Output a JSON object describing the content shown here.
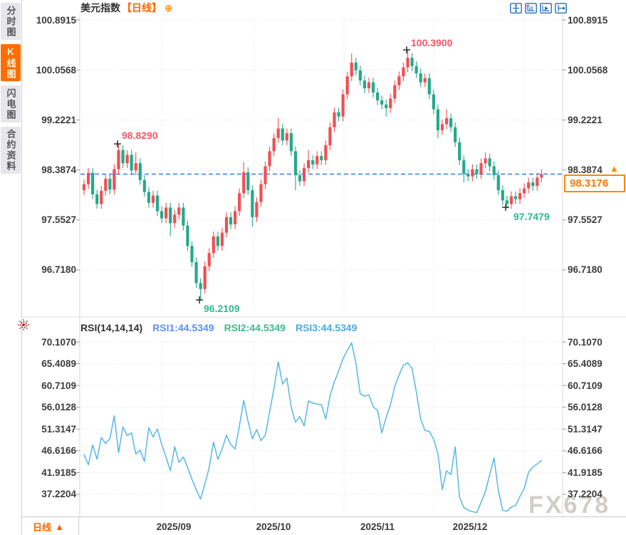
{
  "sidebar": {
    "tabs": [
      {
        "label": "分时图",
        "selected": false
      },
      {
        "label": "K线图",
        "selected": true
      },
      {
        "label": "闪电图",
        "selected": false
      },
      {
        "label": "合约资料",
        "selected": false
      }
    ]
  },
  "titlebar": {
    "symbol": "美元指数",
    "period_tag": "【日线】",
    "add_icon": "⊕",
    "toolbar_icons": [
      "crosshair-move-icon",
      "axis-scale-left-icon",
      "axis-play-icon",
      "pan-right-icon"
    ]
  },
  "candle_panel": {
    "y_axis_labels": [
      "100.8915",
      "100.0568",
      "99.2221",
      "98.3874",
      "97.5527",
      "96.7180"
    ],
    "annotations": [
      {
        "id": "high1",
        "text": "98.8290",
        "color": "#f4566a"
      },
      {
        "id": "high2",
        "text": "100.3900",
        "color": "#f4566a"
      },
      {
        "id": "low1",
        "text": "96.2109",
        "color": "#2eb98d"
      },
      {
        "id": "low2",
        "text": "97.7479",
        "color": "#2eb98d"
      }
    ],
    "current_price": {
      "value": "98.3176",
      "marker": "▲"
    }
  },
  "rsi_panel": {
    "header": {
      "title": "RSI(14,14,14)",
      "rsi1_label": "RSI1:44.5349",
      "rsi2_label": "RSI2:44.5349",
      "rsi3_label": "RSI3:44.5349"
    },
    "y_axis_labels": [
      "70.1070",
      "65.4089",
      "60.7109",
      "56.0128",
      "51.3147",
      "46.6166",
      "41.9185",
      "37.2204"
    ]
  },
  "bottom_bar": {
    "period": "日线",
    "arrow": "▲"
  },
  "watermark": "FX678",
  "colors": {
    "up_candle": "#ef4f54",
    "down_candle": "#25a98a",
    "price_line": "#4285f4",
    "rsi_line": "#57b7e6",
    "accent_orange": "#ff6600",
    "grid": "#e2e2e8",
    "axis_text": "#3c3c3c"
  },
  "chart_data": {
    "type": "candlestick",
    "symbol": "美元指数",
    "period": "日线",
    "x_labels": [
      "2025/09",
      "2025/10",
      "2025/11",
      "2025/12"
    ],
    "price_y_ticks": [
      100.8915,
      100.0568,
      99.2221,
      98.3874,
      97.5527,
      96.718
    ],
    "current_price": 98.3176,
    "marked_points": {
      "local_high": 98.829,
      "global_high": 100.39,
      "global_low": 96.2109,
      "recent_low": 97.7479
    },
    "candles_ohlc": [
      [
        98.05,
        98.23,
        97.97,
        98.15
      ],
      [
        98.15,
        98.42,
        98.07,
        98.34
      ],
      [
        98.34,
        98.42,
        97.9,
        97.98
      ],
      [
        97.98,
        98.06,
        97.74,
        97.82
      ],
      [
        97.82,
        98.12,
        97.74,
        98.04
      ],
      [
        98.04,
        98.32,
        97.96,
        98.24
      ],
      [
        98.24,
        98.32,
        97.98,
        98.06
      ],
      [
        98.06,
        98.48,
        97.98,
        98.4
      ],
      [
        98.4,
        98.83,
        98.32,
        98.72
      ],
      [
        98.72,
        98.8,
        98.42,
        98.5
      ],
      [
        98.5,
        98.72,
        98.42,
        98.64
      ],
      [
        98.64,
        98.72,
        98.3,
        98.38
      ],
      [
        98.38,
        98.68,
        98.3,
        98.5
      ],
      [
        98.5,
        98.58,
        98.14,
        98.22
      ],
      [
        98.22,
        98.3,
        97.94,
        98.02
      ],
      [
        98.02,
        98.1,
        97.76,
        97.84
      ],
      [
        97.84,
        98.04,
        97.76,
        97.96
      ],
      [
        97.96,
        98.04,
        97.62,
        97.7
      ],
      [
        97.7,
        97.78,
        97.5,
        97.58
      ],
      [
        97.58,
        97.84,
        97.5,
        97.76
      ],
      [
        97.76,
        97.84,
        97.28,
        97.5
      ],
      [
        97.5,
        97.72,
        97.42,
        97.64
      ],
      [
        97.64,
        97.84,
        97.56,
        97.76
      ],
      [
        97.76,
        97.84,
        97.38,
        97.46
      ],
      [
        97.46,
        97.54,
        97.04,
        97.12
      ],
      [
        97.12,
        97.2,
        96.77,
        96.85
      ],
      [
        96.85,
        96.93,
        96.42,
        96.5
      ],
      [
        96.5,
        96.58,
        96.21,
        96.4
      ],
      [
        96.4,
        96.86,
        96.32,
        96.78
      ],
      [
        96.78,
        97.08,
        96.7,
        97.0
      ],
      [
        97.0,
        97.36,
        96.92,
        97.28
      ],
      [
        97.28,
        97.36,
        97.04,
        97.12
      ],
      [
        97.12,
        97.42,
        97.04,
        97.34
      ],
      [
        97.34,
        97.68,
        97.26,
        97.6
      ],
      [
        97.6,
        97.68,
        97.4,
        97.48
      ],
      [
        97.48,
        97.78,
        97.4,
        97.7
      ],
      [
        97.7,
        98.08,
        97.62,
        98.0
      ],
      [
        98.0,
        98.52,
        97.92,
        98.35
      ],
      [
        98.35,
        98.43,
        97.97,
        98.05
      ],
      [
        98.05,
        98.13,
        97.44,
        97.6
      ],
      [
        97.6,
        97.93,
        97.52,
        97.85
      ],
      [
        97.85,
        98.23,
        97.77,
        98.15
      ],
      [
        98.15,
        98.53,
        98.07,
        98.45
      ],
      [
        98.45,
        98.78,
        98.37,
        98.7
      ],
      [
        98.7,
        99.0,
        98.62,
        98.92
      ],
      [
        98.92,
        99.26,
        98.84,
        99.08
      ],
      [
        99.08,
        99.16,
        98.8,
        98.88
      ],
      [
        98.88,
        99.08,
        98.8,
        99.0
      ],
      [
        99.0,
        99.08,
        98.62,
        98.7
      ],
      [
        98.7,
        98.78,
        98.05,
        98.3
      ],
      [
        98.3,
        98.38,
        98.12,
        98.2
      ],
      [
        98.2,
        98.5,
        98.12,
        98.42
      ],
      [
        98.42,
        98.72,
        98.34,
        98.55
      ],
      [
        98.55,
        98.63,
        98.4,
        98.48
      ],
      [
        98.48,
        98.7,
        98.4,
        98.62
      ],
      [
        98.62,
        98.7,
        98.47,
        98.55
      ],
      [
        98.55,
        98.88,
        98.47,
        98.8
      ],
      [
        98.8,
        99.18,
        98.72,
        99.1
      ],
      [
        99.1,
        99.43,
        99.02,
        99.35
      ],
      [
        99.35,
        99.43,
        99.2,
        99.28
      ],
      [
        99.28,
        99.73,
        99.2,
        99.65
      ],
      [
        99.65,
        100.03,
        99.57,
        99.95
      ],
      [
        99.95,
        100.33,
        99.87,
        100.18
      ],
      [
        100.18,
        100.26,
        99.97,
        100.05
      ],
      [
        100.05,
        100.13,
        99.8,
        99.88
      ],
      [
        99.88,
        99.96,
        99.67,
        99.75
      ],
      [
        99.75,
        99.93,
        99.67,
        99.85
      ],
      [
        99.85,
        99.93,
        99.6,
        99.68
      ],
      [
        99.68,
        99.76,
        99.47,
        99.55
      ],
      [
        99.55,
        99.63,
        99.4,
        99.48
      ],
      [
        99.48,
        99.56,
        99.28,
        99.42
      ],
      [
        99.42,
        99.66,
        99.34,
        99.58
      ],
      [
        99.58,
        99.88,
        99.5,
        99.8
      ],
      [
        99.8,
        100.03,
        99.72,
        99.95
      ],
      [
        99.95,
        100.18,
        99.87,
        100.1
      ],
      [
        100.1,
        100.39,
        100.02,
        100.26
      ],
      [
        100.26,
        100.34,
        100.04,
        100.12
      ],
      [
        100.12,
        100.2,
        99.92,
        100.0
      ],
      [
        100.0,
        100.08,
        99.77,
        99.85
      ],
      [
        99.85,
        100.0,
        99.77,
        99.92
      ],
      [
        99.92,
        100.0,
        99.57,
        99.65
      ],
      [
        99.65,
        99.73,
        99.32,
        99.4
      ],
      [
        99.4,
        99.48,
        98.92,
        99.05
      ],
      [
        99.05,
        99.23,
        98.97,
        99.15
      ],
      [
        99.15,
        99.4,
        99.07,
        99.25
      ],
      [
        99.25,
        99.33,
        99.02,
        99.1
      ],
      [
        99.1,
        99.18,
        98.77,
        98.85
      ],
      [
        98.85,
        98.93,
        98.47,
        98.55
      ],
      [
        98.55,
        98.63,
        98.18,
        98.32
      ],
      [
        98.32,
        98.4,
        98.2,
        98.28
      ],
      [
        98.28,
        98.48,
        98.2,
        98.4
      ],
      [
        98.4,
        98.48,
        98.24,
        98.32
      ],
      [
        98.32,
        98.58,
        98.24,
        98.5
      ],
      [
        98.5,
        98.68,
        98.42,
        98.58
      ],
      [
        98.58,
        98.66,
        98.37,
        98.45
      ],
      [
        98.45,
        98.53,
        98.22,
        98.3
      ],
      [
        98.3,
        98.38,
        97.97,
        98.05
      ],
      [
        98.05,
        98.13,
        97.8,
        97.88
      ],
      [
        97.88,
        97.96,
        97.7479,
        97.82
      ],
      [
        97.82,
        98.03,
        97.74,
        97.95
      ],
      [
        97.95,
        98.03,
        97.82,
        97.9
      ],
      [
        97.9,
        98.08,
        97.82,
        98.0
      ],
      [
        98.0,
        98.16,
        97.92,
        98.08
      ],
      [
        98.08,
        98.26,
        98.0,
        98.18
      ],
      [
        98.18,
        98.26,
        98.04,
        98.12
      ],
      [
        98.12,
        98.34,
        98.04,
        98.26
      ],
      [
        98.26,
        98.4,
        98.18,
        98.3176
      ]
    ],
    "rsi": {
      "label": "RSI(14,14,14)",
      "rsi1": 44.5349,
      "rsi2": 44.5349,
      "rsi3": 44.5349,
      "y_ticks": [
        70.107,
        65.4089,
        60.7109,
        56.0128,
        51.3147,
        46.6166,
        41.9185,
        37.2204
      ],
      "values": [
        45.8,
        43.6,
        47.9,
        44.8,
        49.5,
        48.2,
        49.3,
        54.2,
        46.2,
        51.8,
        49.9,
        50.5,
        45.9,
        46.8,
        44.3,
        51.6,
        49.6,
        51.3,
        48.0,
        45.3,
        42.3,
        47.5,
        44.1,
        45.3,
        43.0,
        40.5,
        38.2,
        36.2,
        39.5,
        43.0,
        48.5,
        44.8,
        47.0,
        50.0,
        48.0,
        47.0,
        52.0,
        57.5,
        53.0,
        49.2,
        51.2,
        48.8,
        50.0,
        55.0,
        60.0,
        65.8,
        61.0,
        62.3,
        56.0,
        52.8,
        54.0,
        52.0,
        57.4,
        56.9,
        56.7,
        56.6,
        53.5,
        58.5,
        61.5,
        63.8,
        66.5,
        68.3,
        69.9,
        65.5,
        58.9,
        58.4,
        58.7,
        56.1,
        55.4,
        50.5,
        53.8,
        56.6,
        60.5,
        63.0,
        65.1,
        65.6,
        64.4,
        59.3,
        53.5,
        51.0,
        50.8,
        49.1,
        46.0,
        38.3,
        42.3,
        41.5,
        47.5,
        36.6,
        34.4,
        33.8,
        33.5,
        33.3,
        35.5,
        37.8,
        41.5,
        45.1,
        38.0,
        33.8,
        33.6,
        34.5,
        34.8,
        36.8,
        38.5,
        42.0,
        43.1,
        43.8,
        44.5349
      ]
    }
  }
}
